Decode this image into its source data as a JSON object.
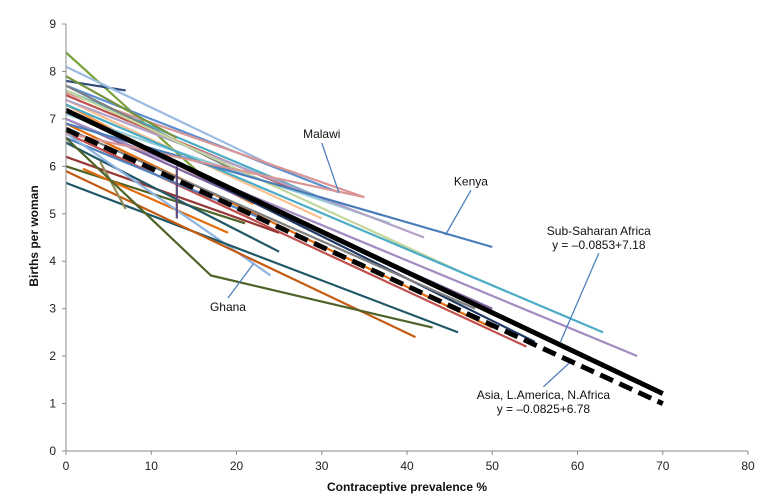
{
  "chart_data": {
    "type": "line",
    "xlabel": "Contraceptive prevalence %",
    "ylabel": "Births per woman",
    "xlim": [
      0,
      80
    ],
    "ylim": [
      0,
      9
    ],
    "xticks": [
      0,
      10,
      20,
      30,
      40,
      50,
      60,
      70,
      80
    ],
    "yticks": [
      0,
      1,
      2,
      3,
      4,
      5,
      6,
      7,
      8,
      9
    ],
    "grid": false,
    "country_series": [
      {
        "color": "#7aa33a",
        "points": [
          [
            0,
            8.4
          ],
          [
            16,
            5.8
          ]
        ]
      },
      {
        "color": "#2f4b7c",
        "points": [
          [
            0,
            7.8
          ],
          [
            7,
            7.6
          ]
        ]
      },
      {
        "color": "#9bbbe3",
        "points": [
          [
            0,
            8.1
          ],
          [
            25,
            5.95
          ]
        ]
      },
      {
        "color": "#5b8fd1",
        "points": [
          [
            0,
            7.7
          ],
          [
            32,
            5.45
          ]
        ]
      },
      {
        "color": "#d99694",
        "points": [
          [
            0,
            7.55
          ],
          [
            35,
            5.35
          ]
        ]
      },
      {
        "color": "#4aacc6",
        "points": [
          [
            0,
            7.6
          ],
          [
            33,
            5.1
          ]
        ]
      },
      {
        "color": "#7f7f7f",
        "points": [
          [
            0,
            7.7
          ],
          [
            20,
            5.9
          ]
        ]
      },
      {
        "color": "#77933c",
        "points": [
          [
            0,
            7.9
          ],
          [
            13,
            6.6
          ]
        ]
      },
      {
        "color": "#c0504d",
        "points": [
          [
            0,
            7.5
          ],
          [
            27,
            5.5
          ]
        ]
      },
      {
        "color": "#f79646",
        "points": [
          [
            0,
            7.3
          ],
          [
            22,
            5.2
          ]
        ]
      },
      {
        "color": "#fac090",
        "points": [
          [
            0,
            7.4
          ],
          [
            30,
            4.9
          ]
        ]
      },
      {
        "color": "#e46c0a",
        "points": [
          [
            0,
            7.2
          ],
          [
            19,
            5.5
          ]
        ]
      },
      {
        "color": "#92cddc",
        "points": [
          [
            0,
            7.1
          ],
          [
            38,
            4.8
          ]
        ]
      },
      {
        "color": "#b3a2c7",
        "points": [
          [
            0,
            7.4
          ],
          [
            42,
            4.5
          ]
        ]
      },
      {
        "color": "#8064a2",
        "points": [
          [
            0,
            7.0
          ],
          [
            50,
            3.0
          ]
        ]
      },
      {
        "color": "#1f3864",
        "points": [
          [
            0,
            7.2
          ],
          [
            55,
            2.3
          ]
        ]
      },
      {
        "color": "#c3d69b",
        "points": [
          [
            0,
            7.6
          ],
          [
            46,
            3.8
          ]
        ]
      },
      {
        "color": "#4bacc6",
        "points": [
          [
            0,
            7.3
          ],
          [
            63,
            2.5
          ]
        ]
      },
      {
        "color": "#a28bc3",
        "points": [
          [
            0,
            7.0
          ],
          [
            67,
            2.0
          ]
        ]
      },
      {
        "color": "#e46c0a",
        "points": [
          [
            0,
            6.9
          ],
          [
            50,
            2.6
          ]
        ]
      },
      {
        "color": "#c0504d",
        "points": [
          [
            0,
            6.7
          ],
          [
            54,
            2.2
          ]
        ]
      },
      {
        "color": "#7f7f7f",
        "points": [
          [
            0,
            6.8
          ],
          [
            48,
            3.0
          ]
        ]
      },
      {
        "color": "#4f81bd",
        "points": [
          [
            0,
            6.6
          ],
          [
            23,
            4.9
          ]
        ]
      },
      {
        "color": "#953735",
        "points": [
          [
            0,
            6.2
          ],
          [
            25,
            4.6
          ]
        ]
      },
      {
        "color": "#4f6228",
        "points": [
          [
            0,
            6.0
          ],
          [
            21,
            4.8
          ]
        ]
      },
      {
        "color": "#e46c0a",
        "points": [
          [
            2,
            5.95
          ],
          [
            19,
            4.6
          ]
        ]
      },
      {
        "color": "#215867",
        "points": [
          [
            0,
            6.5
          ],
          [
            25,
            4.2
          ]
        ]
      },
      {
        "color": "#8db3e2",
        "points": [
          [
            0,
            6.7
          ],
          [
            24,
            3.7
          ]
        ]
      },
      {
        "color": "#205867",
        "points": [
          [
            0,
            5.65
          ],
          [
            46,
            2.5
          ]
        ]
      },
      {
        "color": "#c55a11",
        "points": [
          [
            0,
            5.9
          ],
          [
            41,
            2.4
          ]
        ]
      },
      {
        "color": "#948a54",
        "points": [
          [
            4,
            6.1
          ],
          [
            7,
            5.1
          ]
        ]
      },
      {
        "color": "#5f497a",
        "points": [
          [
            13,
            6.0
          ],
          [
            13,
            4.9
          ]
        ]
      },
      {
        "color": "#4f6228",
        "points": [
          [
            0,
            6.6
          ],
          [
            17,
            3.7
          ],
          [
            43,
            2.6
          ]
        ]
      },
      {
        "color": "#4a7ebb",
        "points": [
          [
            0,
            6.9
          ],
          [
            50,
            4.3
          ]
        ]
      },
      {
        "color": "#d99694",
        "points": [
          [
            0,
            6.7
          ],
          [
            35,
            5.35
          ]
        ]
      }
    ],
    "regression_lines": [
      {
        "name": "Sub-Saharan Africa",
        "equation": "y = –0.0853+7.18",
        "points": [
          [
            0,
            7.18
          ],
          [
            70,
            1.21
          ]
        ],
        "color": "#000000",
        "style": "solid"
      },
      {
        "name": "Asia, L.America, N.Africa",
        "equation": "y = –0.0825+6.78",
        "points": [
          [
            0,
            6.78
          ],
          [
            70,
            1.0
          ]
        ],
        "color": "#000000",
        "style": "dashed"
      }
    ],
    "annotations": [
      {
        "label": "Malawi",
        "text_at": [
          30,
          6.6
        ],
        "arrow_to": [
          32,
          5.45
        ]
      },
      {
        "label": "Kenya",
        "text_at": [
          47.5,
          5.6
        ],
        "arrow_to": [
          44.5,
          4.55
        ]
      },
      {
        "label": "Ghana",
        "text_at": [
          19,
          2.95
        ],
        "arrow_to": [
          22,
          3.95
        ]
      }
    ],
    "regression_labels": [
      {
        "lines": [
          "Sub-Saharan Africa",
          "y = –0.0853+7.18"
        ],
        "text_at": [
          62.5,
          4.55
        ],
        "arrow_to": [
          58,
          2.3
        ]
      },
      {
        "lines": [
          "Asia, L.America, N.Africa",
          "y = –0.0825+6.78"
        ],
        "text_at": [
          56,
          1.1
        ],
        "arrow_to": [
          59,
          1.85
        ]
      }
    ]
  }
}
